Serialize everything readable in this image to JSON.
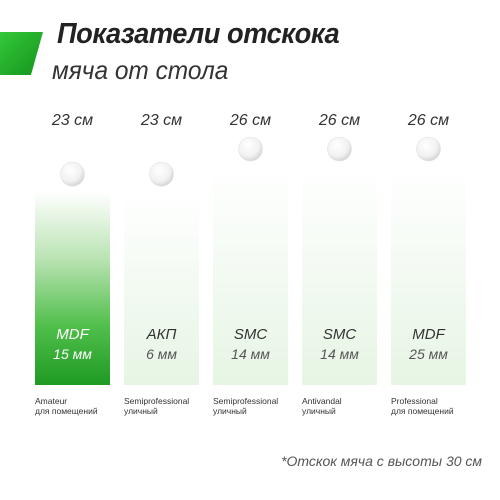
{
  "header": {
    "title_line1": "Показатели отскока",
    "title_line2": "мяча от стола"
  },
  "footnote": "*Отскок мяча с высоты 30 см",
  "colors": {
    "accent_green": "#2db334",
    "bar_green_top": "#ffffff",
    "bar_green_bottom": "#1f9a23",
    "bar_pale_top": "#ffffff",
    "bar_pale_bottom": "#e8f6e6",
    "ball": "#f4f4f4"
  },
  "chart_data": {
    "type": "bar",
    "categories": [
      "MDF 15 мм",
      "АКП 6 мм",
      "SMC 14 мм",
      "SMC 14 мм",
      "MDF 25 мм"
    ],
    "values": [
      23,
      23,
      26,
      26,
      26
    ],
    "unit": "см",
    "value_labels": [
      "23 см",
      "23 см",
      "26 см",
      "26 см",
      "26 см"
    ],
    "bars": [
      {
        "material": "MDF",
        "thickness": "15 мм",
        "caption_line1": "Amateur",
        "caption_line2": "для помещений",
        "highlight": true
      },
      {
        "material": "АКП",
        "thickness": "6 мм",
        "caption_line1": "Semiprofessional",
        "caption_line2": "уличный",
        "highlight": false
      },
      {
        "material": "SMC",
        "thickness": "14 мм",
        "caption_line1": "Semiprofessional",
        "caption_line2": "уличный",
        "highlight": false
      },
      {
        "material": "SMC",
        "thickness": "14 мм",
        "caption_line1": "Antivandal",
        "caption_line2": "уличный",
        "highlight": false
      },
      {
        "material": "MDF",
        "thickness": "25 мм",
        "caption_line1": "Professional",
        "caption_line2": "для помещений",
        "highlight": false
      }
    ],
    "ylim": [
      0,
      26
    ],
    "grid": false,
    "legend": "none"
  }
}
